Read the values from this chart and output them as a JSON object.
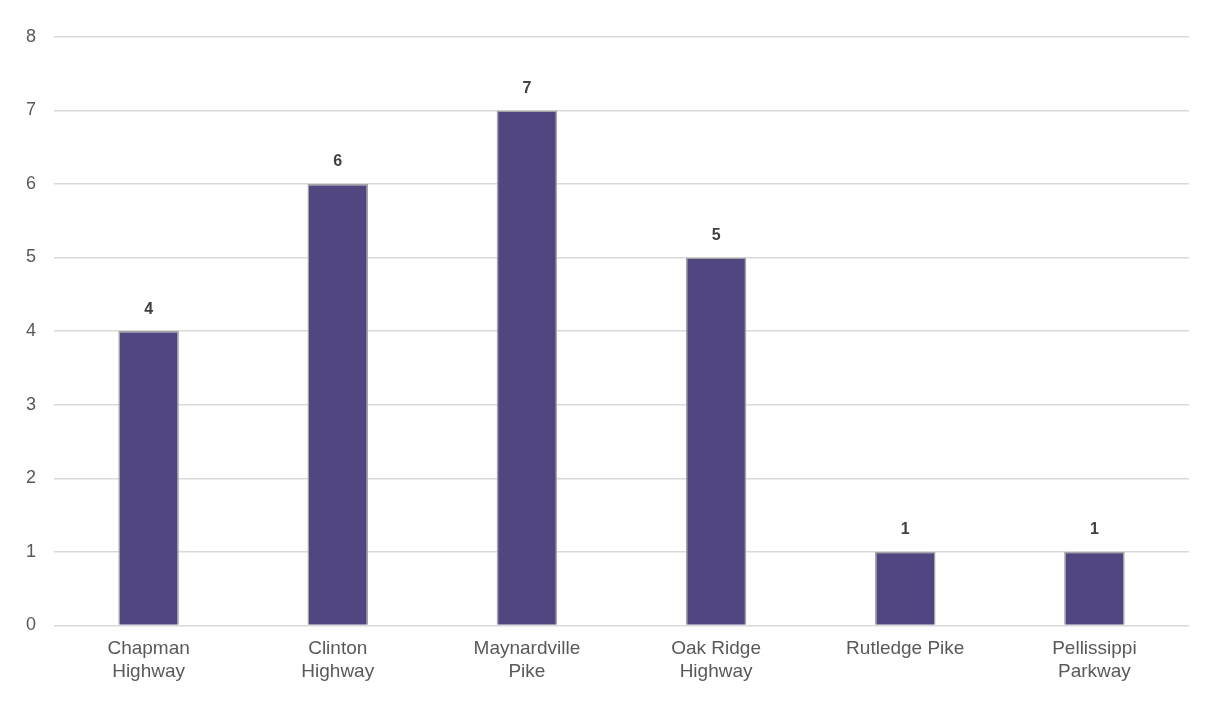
{
  "chart_data": {
    "type": "bar",
    "categories": [
      "Chapman Highway",
      "Clinton Highway",
      "Maynardville Pike",
      "Oak Ridge Highway",
      "Rutledge Pike",
      "Pellissippi Parkway"
    ],
    "values": [
      4,
      6,
      7,
      5,
      1,
      1
    ],
    "color": "#524680",
    "ylim": [
      0,
      8
    ],
    "yticks": [
      0,
      1,
      2,
      3,
      4,
      5,
      6,
      7,
      8
    ],
    "grid": "y",
    "legend": false,
    "data_labels": true
  }
}
